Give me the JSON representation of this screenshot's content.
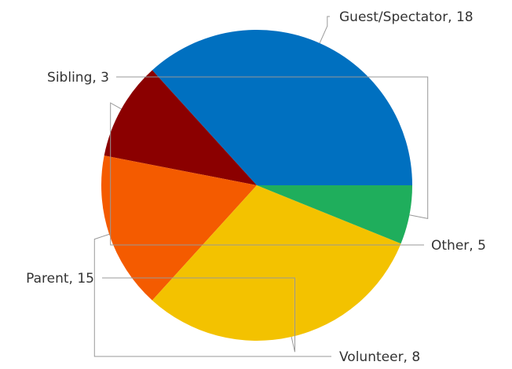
{
  "chart_data": {
    "type": "pie",
    "title": "",
    "categories": [
      "Guest/Spectator",
      "Other",
      "Volunteer",
      "Parent",
      "Sibling"
    ],
    "values": [
      18,
      5,
      8,
      15,
      3
    ],
    "labels": [
      "Guest/Spectator, 18",
      "Other, 5",
      "Volunteer, 8",
      "Parent, 15",
      "Sibling, 3"
    ],
    "colors": [
      "#0070c0",
      "#8b0000",
      "#f45b00",
      "#f3c200",
      "#1fae5c"
    ],
    "legend": "none",
    "start_angle": "3 o'clock",
    "direction": "counterclockwise"
  }
}
